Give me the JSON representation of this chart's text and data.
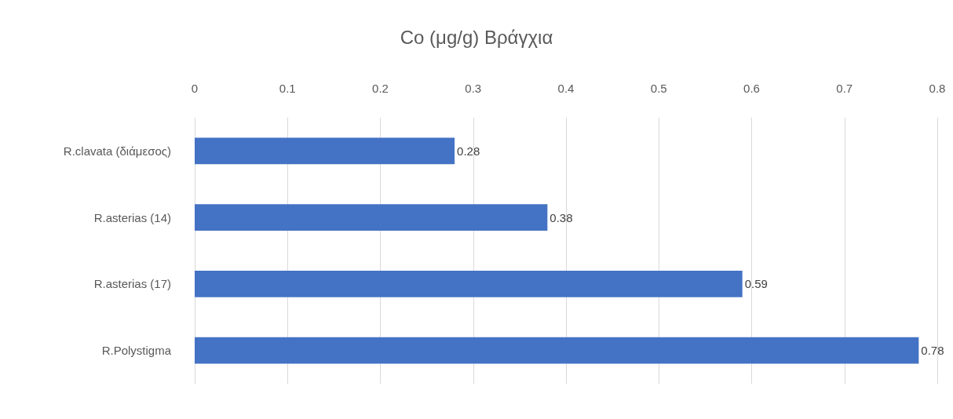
{
  "chart_data": {
    "type": "bar",
    "title": "Co (μg/g) Βράγχια",
    "orientation": "horizontal",
    "categories": [
      "R.clavata (διάμεσος)",
      "R.asterias (14)",
      "R.asterias (17)",
      "R.Polystigma"
    ],
    "values": [
      0.28,
      0.38,
      0.59,
      0.78
    ],
    "color": "#4472c4",
    "xlim": [
      0,
      0.8
    ],
    "xticks": [
      0,
      0.1,
      0.2,
      0.3,
      0.4,
      0.5,
      0.6,
      0.7,
      0.8
    ],
    "grid": "x",
    "data_labels": true
  }
}
